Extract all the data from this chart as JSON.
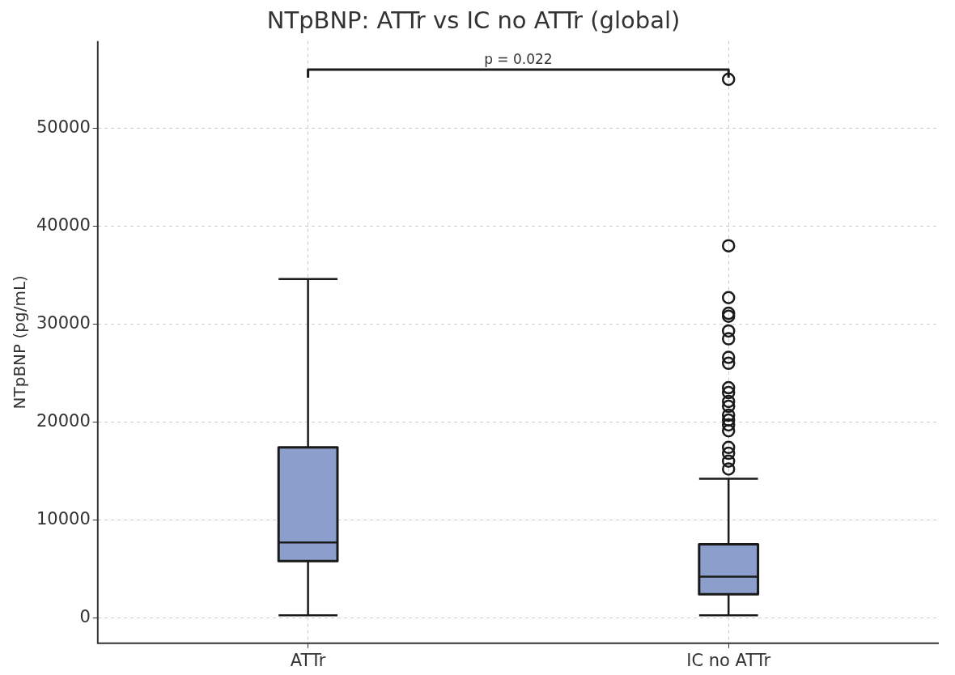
{
  "chart_data": {
    "type": "box",
    "title": "NTpBNP: ATTr vs IC no ATTr (global)",
    "ylabel": "NTpBNP (pg/mL)",
    "categories": [
      "ATTr",
      "IC no ATTr"
    ],
    "color": "#8c9fcc",
    "boxes": [
      {
        "low": 250,
        "q1": 5800,
        "median": 7700,
        "q3": 17400,
        "high": 34600
      },
      {
        "low": 250,
        "q1": 2400,
        "median": 4200,
        "q3": 7500,
        "high": 14200,
        "outliers": [
          55000,
          38000,
          32700,
          31100,
          30800,
          29300,
          28500,
          26600,
          26000,
          23500,
          23000,
          22100,
          21600,
          20700,
          20200,
          19700,
          19100,
          17400,
          16800,
          16000,
          15200
        ]
      }
    ],
    "ylim": [
      -2600,
      58900
    ],
    "yticks": [
      0,
      10000,
      20000,
      30000,
      40000,
      50000
    ],
    "grid": true,
    "annotations": [
      "p = 0.022"
    ]
  }
}
